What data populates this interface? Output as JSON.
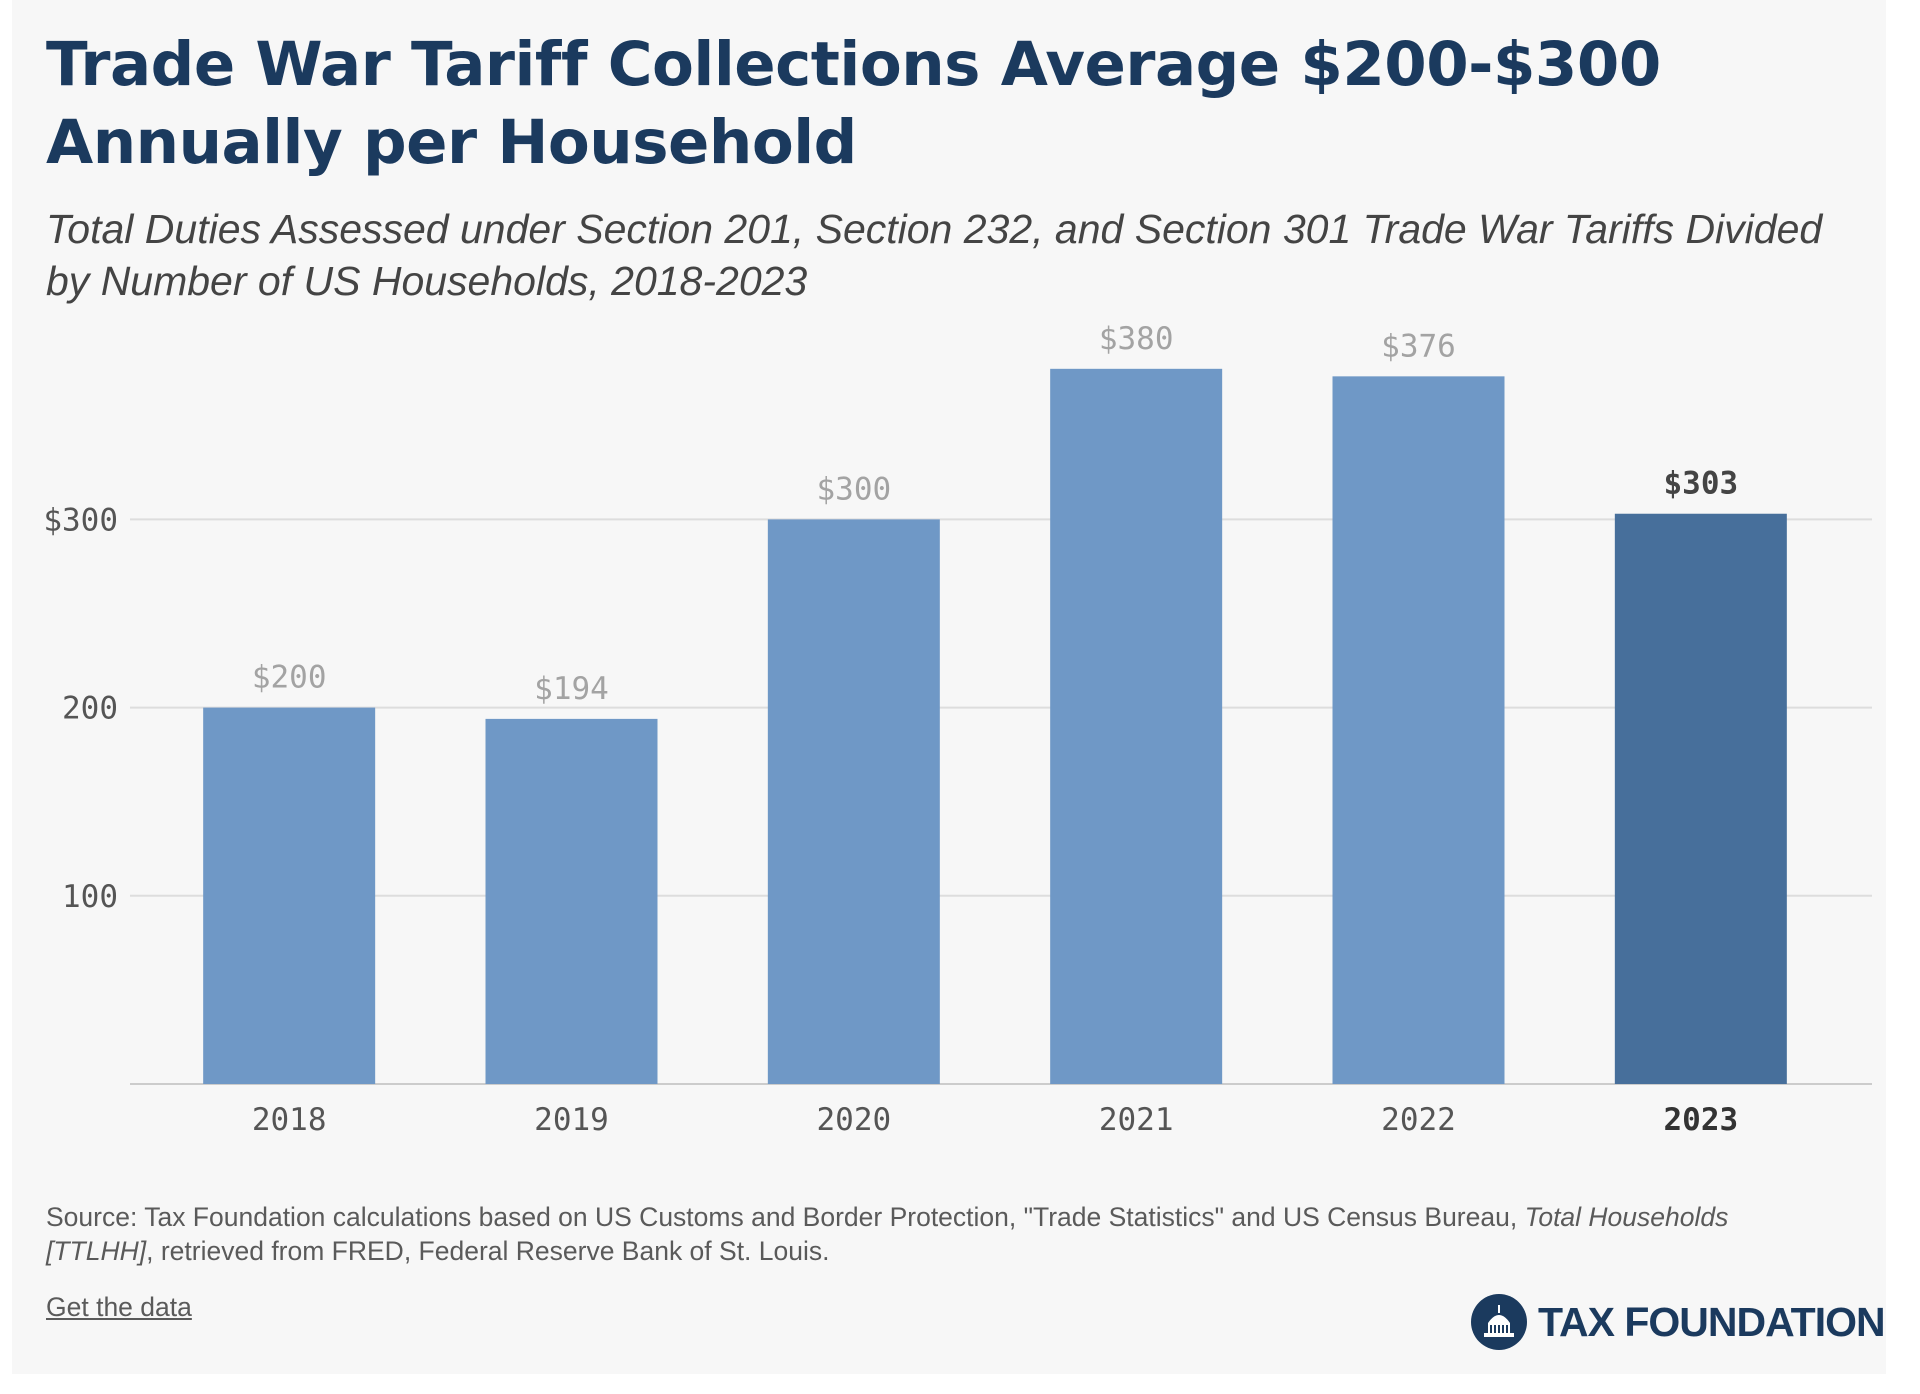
{
  "title": "Trade War Tariff Collections Average $200-$300 Annually per Household",
  "subtitle": "Total Duties Assessed under Section 201, Section 232, and Section 301 Trade War Tariffs Divided by Number of US Households, 2018-2023",
  "source": {
    "prefix": "Source: Tax Foundation calculations based on US Customs and Border Protection, \"Trade Statistics\" and US Census Bureau, ",
    "italic": "Total Households [TTLHH]",
    "suffix": ", retrieved from FRED, Federal Reserve Bank of St. Louis."
  },
  "get_data_label": "Get the data",
  "logo": {
    "text": "TAX FOUNDATION",
    "icon": "capitol-dome-icon"
  },
  "colors": {
    "bar": "#6f98c6",
    "bar_highlight": "#476f9b",
    "label": "#a3a3a3",
    "label_highlight": "#444444",
    "axis_text": "#555555",
    "grid": "#dddddd",
    "title": "#1b3a5e"
  },
  "chart_data": {
    "type": "bar",
    "title": "Trade War Tariff Collections Average $200-$300 Annually per Household",
    "xlabel": "",
    "ylabel": "",
    "categories": [
      "2018",
      "2019",
      "2020",
      "2021",
      "2022",
      "2023"
    ],
    "values": [
      200,
      194,
      300,
      380,
      376,
      303
    ],
    "data_labels": [
      "$200",
      "$194",
      "$300",
      "$380",
      "$376",
      "$303"
    ],
    "highlight": "2023",
    "ylim": [
      0,
      390
    ],
    "yticks": [
      100,
      200,
      300
    ],
    "ytick_labels": [
      "100",
      "200",
      "$300"
    ],
    "grid": true,
    "legend": "none"
  }
}
